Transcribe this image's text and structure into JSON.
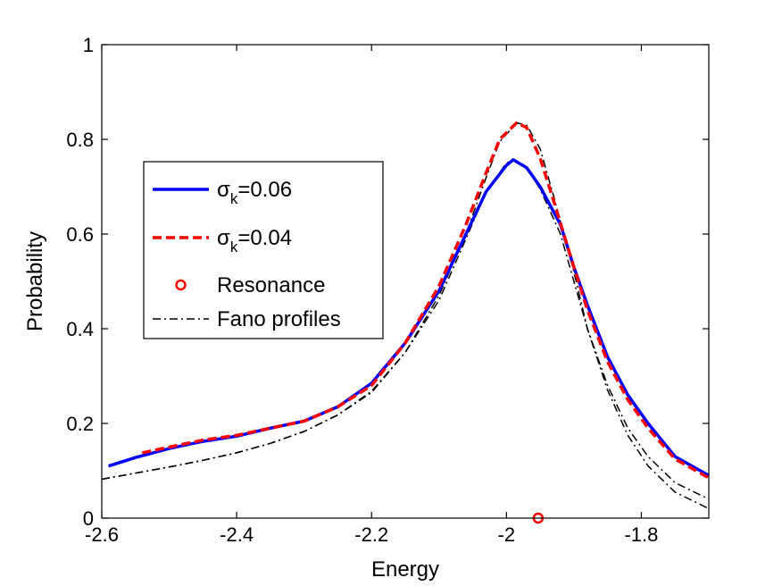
{
  "chart_data": {
    "type": "line",
    "xlabel": "Energy",
    "ylabel": "Probability",
    "xlim": [
      -2.6,
      -1.7
    ],
    "ylim": [
      0,
      1
    ],
    "xticks": [
      -2.6,
      -2.4,
      -2.2,
      -2.0,
      -1.8
    ],
    "xtick_labels": [
      "-2.6",
      "-2.4",
      "-2.2",
      "-2",
      "-1.8"
    ],
    "yticks": [
      0,
      0.2,
      0.4,
      0.6,
      0.8,
      1
    ],
    "ytick_labels": [
      "0",
      "0.2",
      "0.4",
      "0.6",
      "0.8",
      "1"
    ],
    "grid": false,
    "legend_position": "left-middle",
    "legend": [
      {
        "key": "sigma06",
        "text_main": "σ",
        "text_sub": "k",
        "text_rest": "=0.06",
        "style": "solid",
        "color": "#0000ff"
      },
      {
        "key": "sigma04",
        "text_main": "σ",
        "text_sub": "k",
        "text_rest": "=0.04",
        "style": "dashed",
        "color": "#ff0000"
      },
      {
        "key": "resonance",
        "text_main": "Resonance",
        "style": "marker-circle",
        "color": "#ff0000"
      },
      {
        "key": "fano",
        "text_main": "Fano profiles",
        "style": "dashdot",
        "color": "#000000"
      }
    ],
    "series": [
      {
        "key": "sigma06",
        "style": "solid",
        "color": "#0000ff",
        "x": [
          -2.59,
          -2.55,
          -2.5,
          -2.45,
          -2.4,
          -2.35,
          -2.3,
          -2.25,
          -2.2,
          -2.15,
          -2.1,
          -2.06,
          -2.03,
          -2.0,
          -1.99,
          -1.97,
          -1.95,
          -1.92,
          -1.9,
          -1.88,
          -1.85,
          -1.82,
          -1.79,
          -1.75,
          -1.7
        ],
        "y": [
          0.11,
          0.128,
          0.147,
          0.162,
          0.173,
          0.19,
          0.205,
          0.235,
          0.285,
          0.37,
          0.48,
          0.6,
          0.69,
          0.745,
          0.757,
          0.74,
          0.7,
          0.62,
          0.53,
          0.45,
          0.34,
          0.26,
          0.2,
          0.13,
          0.09
        ]
      },
      {
        "key": "sigma04",
        "style": "dashed",
        "color": "#ff0000",
        "x": [
          -2.54,
          -2.5,
          -2.45,
          -2.4,
          -2.35,
          -2.3,
          -2.25,
          -2.2,
          -2.15,
          -2.1,
          -2.06,
          -2.03,
          -2.01,
          -1.985,
          -1.97,
          -1.95,
          -1.93,
          -1.9,
          -1.88,
          -1.85,
          -1.82,
          -1.79,
          -1.75,
          -1.7
        ],
        "y": [
          0.138,
          0.15,
          0.165,
          0.175,
          0.19,
          0.205,
          0.235,
          0.28,
          0.37,
          0.49,
          0.62,
          0.73,
          0.8,
          0.835,
          0.825,
          0.76,
          0.67,
          0.53,
          0.44,
          0.33,
          0.25,
          0.19,
          0.125,
          0.085
        ]
      },
      {
        "key": "fano1",
        "style": "dashdot",
        "color": "#000000",
        "x": [
          -2.6,
          -2.55,
          -2.5,
          -2.45,
          -2.4,
          -2.35,
          -2.3,
          -2.25,
          -2.2,
          -2.15,
          -2.1,
          -2.06,
          -2.03,
          -2.0,
          -1.99,
          -1.97,
          -1.95,
          -1.92,
          -1.9,
          -1.88,
          -1.85,
          -1.82,
          -1.79,
          -1.75,
          -1.7
        ],
        "y": [
          0.082,
          0.095,
          0.108,
          0.122,
          0.138,
          0.158,
          0.183,
          0.218,
          0.268,
          0.35,
          0.46,
          0.59,
          0.69,
          0.75,
          0.757,
          0.74,
          0.695,
          0.6,
          0.5,
          0.4,
          0.28,
          0.19,
          0.13,
          0.075,
          0.04
        ]
      },
      {
        "key": "fano2",
        "style": "dashdot",
        "color": "#000000",
        "x": [
          -2.6,
          -2.55,
          -2.5,
          -2.45,
          -2.4,
          -2.35,
          -2.3,
          -2.25,
          -2.2,
          -2.15,
          -2.1,
          -2.06,
          -2.03,
          -2.01,
          -1.985,
          -1.97,
          -1.95,
          -1.93,
          -1.9,
          -1.88,
          -1.85,
          -1.82,
          -1.79,
          -1.75,
          -1.7
        ],
        "y": [
          0.082,
          0.095,
          0.108,
          0.122,
          0.138,
          0.158,
          0.183,
          0.218,
          0.265,
          0.35,
          0.47,
          0.6,
          0.72,
          0.795,
          0.835,
          0.83,
          0.78,
          0.68,
          0.52,
          0.4,
          0.27,
          0.175,
          0.11,
          0.055,
          0.02
        ]
      }
    ],
    "markers": [
      {
        "key": "resonance",
        "shape": "circle",
        "color": "#ff0000",
        "x": -1.953,
        "y": 0.0
      }
    ]
  }
}
